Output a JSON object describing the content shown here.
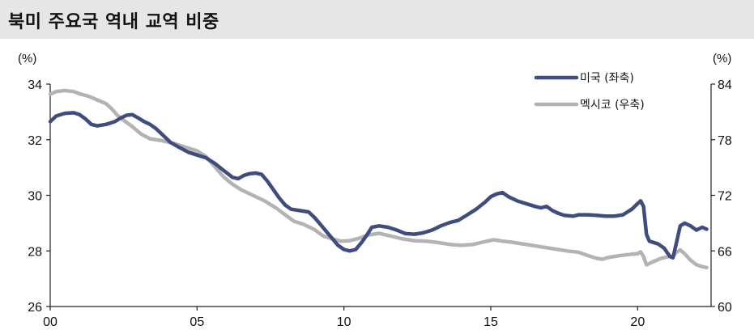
{
  "header": {
    "title": "북미 주요국 역내 교역 비중"
  },
  "colors": {
    "us": "#3f4d7e",
    "mexico": "#b3b3b3",
    "axis": "#222222",
    "title_bg": "#e6e6e6"
  },
  "chart_data": {
    "type": "line",
    "title": "북미 주요국 역내 교역 비중",
    "xlim": [
      2000,
      2022.5
    ],
    "x_ticks": [
      {
        "value": 2000,
        "label": "00"
      },
      {
        "value": 2005,
        "label": "05"
      },
      {
        "value": 2010,
        "label": "10"
      },
      {
        "value": 2015,
        "label": "15"
      },
      {
        "value": 2020,
        "label": "20"
      }
    ],
    "left_axis": {
      "unit": "(%)",
      "ylim": [
        26,
        34
      ],
      "ticks": [
        26,
        28,
        30,
        32,
        34
      ]
    },
    "right_axis": {
      "unit": "(%)",
      "ylim": [
        60,
        84
      ],
      "ticks": [
        60,
        66,
        72,
        78,
        84
      ]
    },
    "legend": {
      "position": "top-right"
    },
    "series": [
      {
        "name": "미국 (좌축)",
        "axis": "left",
        "color": "#3f4d7e",
        "points": [
          [
            2000.0,
            32.65
          ],
          [
            2000.2,
            32.85
          ],
          [
            2000.5,
            32.95
          ],
          [
            2000.8,
            32.97
          ],
          [
            2001.0,
            32.9
          ],
          [
            2001.2,
            32.75
          ],
          [
            2001.4,
            32.55
          ],
          [
            2001.6,
            32.5
          ],
          [
            2001.9,
            32.55
          ],
          [
            2002.2,
            32.65
          ],
          [
            2002.4,
            32.78
          ],
          [
            2002.6,
            32.88
          ],
          [
            2002.8,
            32.9
          ],
          [
            2003.0,
            32.78
          ],
          [
            2003.2,
            32.65
          ],
          [
            2003.4,
            32.55
          ],
          [
            2003.6,
            32.4
          ],
          [
            2003.9,
            32.1
          ],
          [
            2004.1,
            31.9
          ],
          [
            2004.4,
            31.72
          ],
          [
            2004.7,
            31.55
          ],
          [
            2005.0,
            31.45
          ],
          [
            2005.3,
            31.35
          ],
          [
            2005.6,
            31.15
          ],
          [
            2005.9,
            30.9
          ],
          [
            2006.2,
            30.65
          ],
          [
            2006.4,
            30.6
          ],
          [
            2006.6,
            30.72
          ],
          [
            2006.8,
            30.78
          ],
          [
            2007.0,
            30.8
          ],
          [
            2007.2,
            30.75
          ],
          [
            2007.4,
            30.5
          ],
          [
            2007.6,
            30.2
          ],
          [
            2007.8,
            29.9
          ],
          [
            2008.0,
            29.65
          ],
          [
            2008.2,
            29.5
          ],
          [
            2008.5,
            29.45
          ],
          [
            2008.8,
            29.4
          ],
          [
            2009.0,
            29.2
          ],
          [
            2009.2,
            28.95
          ],
          [
            2009.4,
            28.7
          ],
          [
            2009.6,
            28.45
          ],
          [
            2009.8,
            28.2
          ],
          [
            2010.0,
            28.05
          ],
          [
            2010.2,
            28.0
          ],
          [
            2010.4,
            28.05
          ],
          [
            2010.6,
            28.3
          ],
          [
            2010.8,
            28.6
          ],
          [
            2010.95,
            28.85
          ],
          [
            2011.2,
            28.9
          ],
          [
            2011.5,
            28.85
          ],
          [
            2011.8,
            28.75
          ],
          [
            2012.1,
            28.62
          ],
          [
            2012.4,
            28.6
          ],
          [
            2012.7,
            28.65
          ],
          [
            2013.0,
            28.75
          ],
          [
            2013.3,
            28.9
          ],
          [
            2013.6,
            29.02
          ],
          [
            2013.9,
            29.1
          ],
          [
            2014.2,
            29.3
          ],
          [
            2014.5,
            29.5
          ],
          [
            2014.8,
            29.75
          ],
          [
            2015.0,
            29.95
          ],
          [
            2015.2,
            30.05
          ],
          [
            2015.4,
            30.1
          ],
          [
            2015.6,
            29.95
          ],
          [
            2015.9,
            29.8
          ],
          [
            2016.2,
            29.7
          ],
          [
            2016.5,
            29.6
          ],
          [
            2016.7,
            29.55
          ],
          [
            2016.9,
            29.6
          ],
          [
            2017.1,
            29.45
          ],
          [
            2017.3,
            29.35
          ],
          [
            2017.5,
            29.28
          ],
          [
            2017.8,
            29.25
          ],
          [
            2018.0,
            29.3
          ],
          [
            2018.3,
            29.3
          ],
          [
            2018.6,
            29.28
          ],
          [
            2018.9,
            29.25
          ],
          [
            2019.2,
            29.25
          ],
          [
            2019.5,
            29.3
          ],
          [
            2019.8,
            29.5
          ],
          [
            2020.0,
            29.7
          ],
          [
            2020.1,
            29.8
          ],
          [
            2020.2,
            29.6
          ],
          [
            2020.3,
            28.6
          ],
          [
            2020.4,
            28.35
          ],
          [
            2020.7,
            28.25
          ],
          [
            2020.9,
            28.1
          ],
          [
            2021.0,
            27.95
          ],
          [
            2021.1,
            27.8
          ],
          [
            2021.2,
            27.75
          ],
          [
            2021.3,
            28.2
          ],
          [
            2021.45,
            28.9
          ],
          [
            2021.6,
            29.0
          ],
          [
            2021.8,
            28.9
          ],
          [
            2022.0,
            28.75
          ],
          [
            2022.2,
            28.85
          ],
          [
            2022.35,
            28.78
          ]
        ]
      },
      {
        "name": "멕시코 (우축)",
        "axis": "right",
        "color": "#b3b3b3",
        "points": [
          [
            2000.0,
            82.9
          ],
          [
            2000.2,
            83.2
          ],
          [
            2000.5,
            83.3
          ],
          [
            2000.8,
            83.2
          ],
          [
            2001.0,
            82.95
          ],
          [
            2001.3,
            82.7
          ],
          [
            2001.6,
            82.3
          ],
          [
            2001.9,
            81.9
          ],
          [
            2002.1,
            81.3
          ],
          [
            2002.3,
            80.6
          ],
          [
            2002.5,
            80.1
          ],
          [
            2002.8,
            79.4
          ],
          [
            2003.1,
            78.6
          ],
          [
            2003.4,
            78.1
          ],
          [
            2003.8,
            77.9
          ],
          [
            2004.2,
            77.6
          ],
          [
            2004.6,
            77.2
          ],
          [
            2005.0,
            76.8
          ],
          [
            2005.3,
            76.2
          ],
          [
            2005.6,
            75.1
          ],
          [
            2005.9,
            74.0
          ],
          [
            2006.2,
            73.2
          ],
          [
            2006.5,
            72.6
          ],
          [
            2006.9,
            72.0
          ],
          [
            2007.3,
            71.4
          ],
          [
            2007.7,
            70.6
          ],
          [
            2008.0,
            69.9
          ],
          [
            2008.3,
            69.2
          ],
          [
            2008.6,
            68.9
          ],
          [
            2009.0,
            68.3
          ],
          [
            2009.3,
            67.6
          ],
          [
            2009.6,
            67.3
          ],
          [
            2009.9,
            67.05
          ],
          [
            2010.2,
            67.1
          ],
          [
            2010.5,
            67.35
          ],
          [
            2010.8,
            67.7
          ],
          [
            2011.2,
            67.9
          ],
          [
            2011.6,
            67.6
          ],
          [
            2012.0,
            67.3
          ],
          [
            2012.4,
            67.1
          ],
          [
            2012.8,
            67.05
          ],
          [
            2013.2,
            66.9
          ],
          [
            2013.6,
            66.7
          ],
          [
            2014.0,
            66.6
          ],
          [
            2014.4,
            66.7
          ],
          [
            2014.8,
            67.0
          ],
          [
            2015.1,
            67.2
          ],
          [
            2015.4,
            67.05
          ],
          [
            2015.7,
            66.95
          ],
          [
            2016.0,
            66.8
          ],
          [
            2016.4,
            66.6
          ],
          [
            2016.8,
            66.4
          ],
          [
            2017.2,
            66.2
          ],
          [
            2017.6,
            66.0
          ],
          [
            2018.0,
            65.85
          ],
          [
            2018.3,
            65.5
          ],
          [
            2018.6,
            65.2
          ],
          [
            2018.8,
            65.1
          ],
          [
            2019.0,
            65.3
          ],
          [
            2019.4,
            65.5
          ],
          [
            2019.8,
            65.65
          ],
          [
            2020.0,
            65.7
          ],
          [
            2020.1,
            65.9
          ],
          [
            2020.2,
            65.4
          ],
          [
            2020.3,
            64.5
          ],
          [
            2020.5,
            64.8
          ],
          [
            2020.8,
            65.2
          ],
          [
            2021.1,
            65.4
          ],
          [
            2021.2,
            65.35
          ],
          [
            2021.3,
            65.8
          ],
          [
            2021.45,
            66.1
          ],
          [
            2021.6,
            65.7
          ],
          [
            2021.8,
            65.0
          ],
          [
            2022.0,
            64.5
          ],
          [
            2022.2,
            64.3
          ],
          [
            2022.35,
            64.2
          ]
        ]
      }
    ]
  }
}
